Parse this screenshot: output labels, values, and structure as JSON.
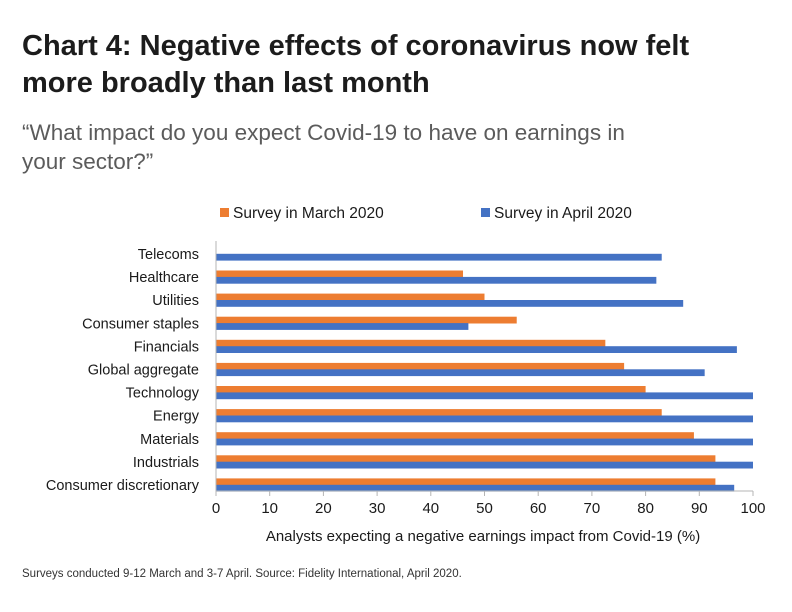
{
  "header": {
    "title_line1": "Chart 4: Negative effects of coronavirus now felt",
    "title_line2": "more broadly than last month",
    "subtitle_line1": "“What impact do you expect Covid-19 to have on earnings in",
    "subtitle_line2": "your sector?”"
  },
  "footnote": "Surveys conducted 9-12 March and 3-7 April. Source: Fidelity International, April 2020.",
  "chart_data": {
    "type": "bar",
    "orientation": "horizontal",
    "categories": [
      "Telecoms",
      "Healthcare",
      "Utilities",
      "Consumer staples",
      "Financials",
      "Global aggregate",
      "Technology",
      "Energy",
      "Materials",
      "Industrials",
      "Consumer discretionary"
    ],
    "series": [
      {
        "name": "Survey in March 2020",
        "color": "#ED7D31",
        "values": [
          0,
          46,
          50,
          56,
          72.5,
          76,
          80,
          83,
          89,
          93,
          93
        ]
      },
      {
        "name": "Survey in April 2020",
        "color": "#4472C4",
        "values": [
          83,
          82,
          87,
          47,
          97,
          91,
          100,
          100,
          100,
          100,
          96.5
        ]
      }
    ],
    "xlabel": "Analysts expecting a negative earnings impact from Covid-19 (%)",
    "xlim": [
      0,
      100
    ],
    "xticks": [
      "0",
      "10",
      "20",
      "30",
      "40",
      "50",
      "60",
      "70",
      "80",
      "90",
      "100"
    ],
    "grid": false,
    "legend": "top"
  }
}
